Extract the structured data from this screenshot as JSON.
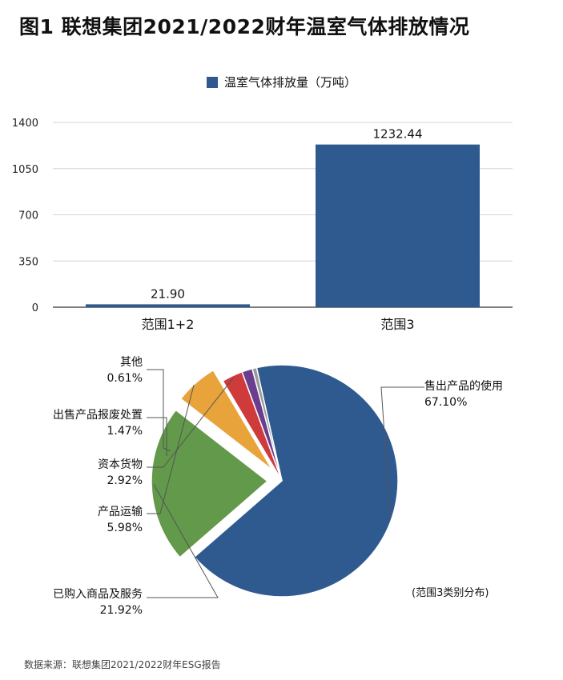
{
  "title": "图1  联想集团2021/2022财年温室气体排放情况",
  "source": "数据来源：联想集团2021/2022财年ESG报告",
  "chart_data": [
    {
      "type": "bar",
      "legend": "温室气体排放量（万吨）",
      "legend_position": "top",
      "categories": [
        "范围1+2",
        "范围3"
      ],
      "values": [
        21.9,
        1232.44
      ],
      "value_labels": [
        "21.90",
        "1232.44"
      ],
      "yticks": [
        "0",
        "350",
        "700",
        "1050",
        "1400"
      ],
      "ylim": [
        0,
        1400
      ],
      "grid": true,
      "color": "#2f5a8f"
    },
    {
      "type": "pie",
      "note": "(范围3类别分布)",
      "slices": [
        {
          "label": "售出产品的使用",
          "pct_label": "67.10%",
          "value": 67.1,
          "color": "#2f5a8f",
          "exploded": false
        },
        {
          "label": "已购入商品及服务",
          "pct_label": "21.92%",
          "value": 21.92,
          "color": "#62994a",
          "exploded": true
        },
        {
          "label": "产品运输",
          "pct_label": "5.98%",
          "value": 5.98,
          "color": "#e8a43b",
          "exploded": true
        },
        {
          "label": "资本货物",
          "pct_label": "2.92%",
          "value": 2.92,
          "color": "#cf3b3b",
          "exploded": false
        },
        {
          "label": "出售产品报废处置",
          "pct_label": "1.47%",
          "value": 1.47,
          "color": "#6b3d8f",
          "exploded": false
        },
        {
          "label": "其他",
          "pct_label": "0.61%",
          "value": 0.61,
          "color": "#9a9a9a",
          "exploded": false
        }
      ]
    }
  ]
}
